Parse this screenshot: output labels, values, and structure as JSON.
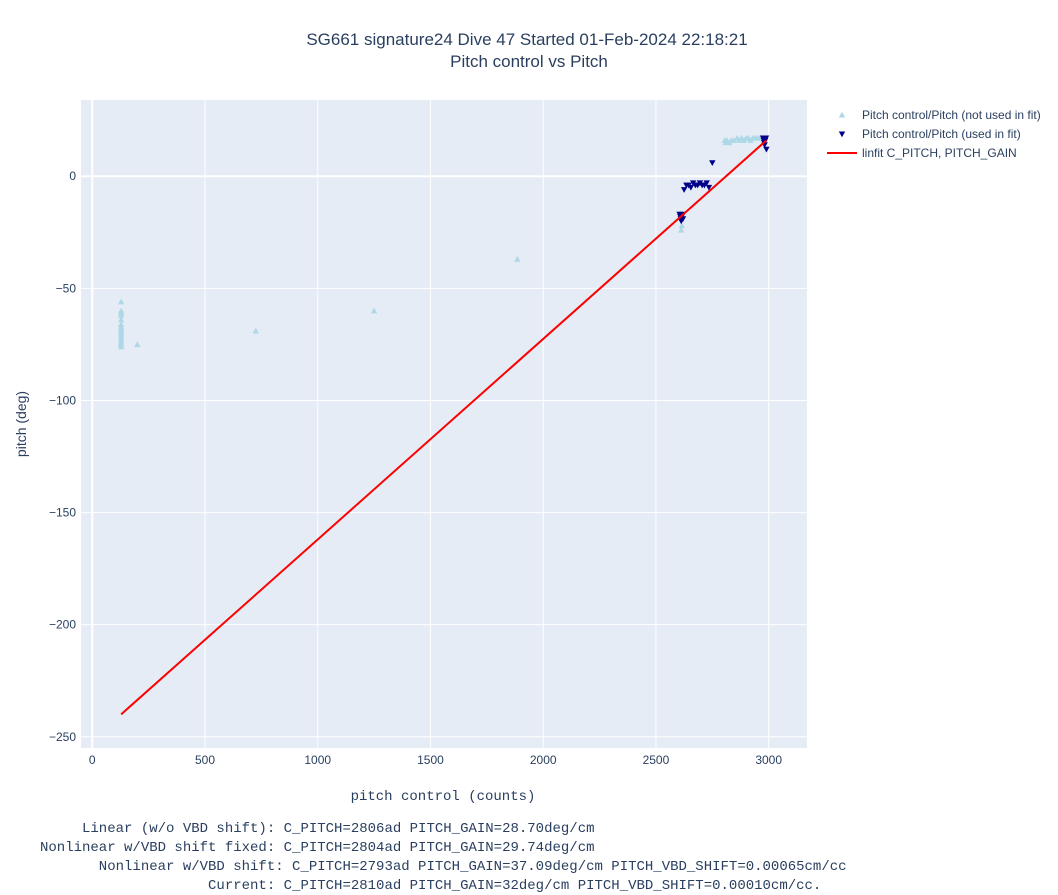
{
  "chart_data": {
    "type": "scatter",
    "title": "SG661 signature24 Dive 47 Started 01-Feb-2024 22:18:21",
    "subtitle": "Pitch control vs Pitch",
    "xlabel": "pitch control (counts)",
    "ylabel": "pitch (deg)",
    "xlim": [
      -50,
      3170
    ],
    "ylim": [
      -255,
      34
    ],
    "xticks": [
      0,
      500,
      1000,
      1500,
      2000,
      2500,
      3000
    ],
    "yticks": [
      -250,
      -200,
      -150,
      -100,
      -50,
      0
    ],
    "grid": true,
    "legend_position": "top-right outside",
    "series": [
      {
        "name": "Pitch control/Pitch (not used in fit)",
        "marker": "triangle-up",
        "color": "#add8e6",
        "x": [
          128,
          128,
          128,
          128,
          128,
          128,
          128,
          128,
          128,
          128,
          128,
          128,
          128,
          128,
          128,
          128,
          200,
          725,
          1250,
          1885,
          2612,
          2615,
          2805,
          2810,
          2815,
          2825,
          2835,
          2845,
          2860,
          2870,
          2880,
          2890,
          2900,
          2910,
          2920,
          2930,
          2940,
          2950,
          2960,
          2970
        ],
        "y": [
          -56,
          -60,
          -61,
          -62,
          -64,
          -66,
          -67,
          -68,
          -69,
          -70,
          -71,
          -72,
          -73,
          -74,
          -75,
          -76,
          -75,
          -69,
          -60,
          -37,
          -24,
          -22,
          16,
          15,
          16,
          15,
          16,
          16,
          17,
          16,
          17,
          16,
          17,
          17,
          16,
          17,
          17,
          17,
          17,
          17
        ]
      },
      {
        "name": "Pitch control/Pitch (used in fit)",
        "marker": "triangle-down",
        "color": "#00008b",
        "x": [
          2605,
          2608,
          2610,
          2612,
          2615,
          2618,
          2620,
          2625,
          2635,
          2645,
          2655,
          2665,
          2675,
          2685,
          2695,
          2705,
          2715,
          2725,
          2735,
          2750,
          2975,
          2978,
          2980,
          2982,
          2985,
          2988,
          2990
        ],
        "y": [
          -17,
          -18,
          -19,
          -20,
          -18,
          -17,
          -19,
          -6,
          -4,
          -4,
          -5,
          -3,
          -4,
          -4,
          -3,
          -4,
          -4,
          -3,
          -5,
          6,
          17,
          16,
          15,
          14,
          16,
          17,
          12
        ]
      },
      {
        "name": "linfit C_PITCH, PITCH_GAIN",
        "type": "line",
        "color": "#ff0000",
        "x": [
          128,
          2990
        ],
        "y": [
          -240,
          16
        ]
      }
    ]
  },
  "notes": [
    "     Linear (w/o VBD shift): C_PITCH=2806ad PITCH_GAIN=28.70deg/cm",
    "Nonlinear w/VBD shift fixed: C_PITCH=2804ad PITCH_GAIN=29.74deg/cm",
    "       Nonlinear w/VBD shift: C_PITCH=2793ad PITCH_GAIN=37.09deg/cm PITCH_VBD_SHIFT=0.00065cm/cc",
    "                    Current: C_PITCH=2810ad PITCH_GAIN=32deg/cm PITCH_VBD_SHIFT=0.00010cm/cc."
  ]
}
